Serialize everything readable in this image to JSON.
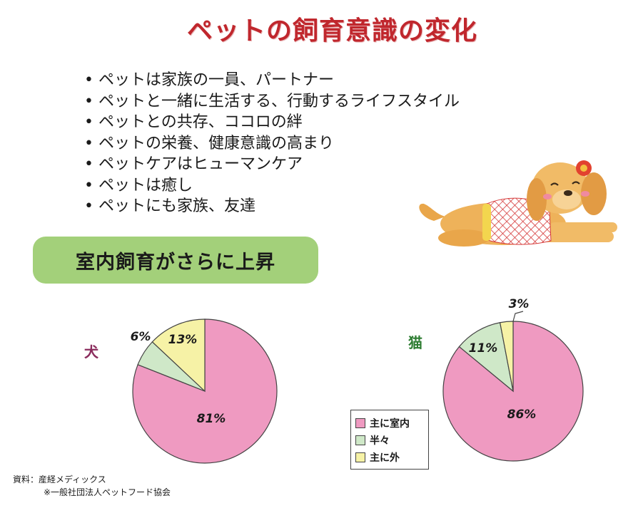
{
  "title": "ペットの飼育意識の変化",
  "bullets": [
    "ペットは家族の一員、パートナー",
    "ペットと一緒に生活する、行動するライフスタイル",
    "ペットとの共存、ココロの絆",
    "ペットの栄養、健康意識の高まり",
    "ペットケアはヒューマンケア",
    "ペットは癒し",
    "ペットにも家族、友達"
  ],
  "banner": "室内飼育がさらに上昇",
  "chart_data": [
    {
      "type": "pie",
      "title": "犬",
      "categories": [
        "主に室内",
        "半々",
        "主に外"
      ],
      "values": [
        81,
        6,
        13
      ],
      "labels": [
        "81%",
        "6%",
        "13%"
      ],
      "colors": [
        "#ef9ac1",
        "#cfe8c8",
        "#f6f2a6"
      ]
    },
    {
      "type": "pie",
      "title": "猫",
      "categories": [
        "主に室内",
        "半々",
        "主に外"
      ],
      "values": [
        86,
        11,
        3
      ],
      "labels": [
        "86%",
        "11%",
        "3%"
      ],
      "colors": [
        "#ef9ac1",
        "#cfe8c8",
        "#f6f2a6"
      ],
      "legend_position": "bottom-left"
    }
  ],
  "legend": [
    {
      "label": "主に室内",
      "color": "#ef9ac1"
    },
    {
      "label": "半々",
      "color": "#cfe8c8"
    },
    {
      "label": "主に外",
      "color": "#f6f2a6"
    }
  ],
  "source": {
    "line1": "資料：産経メディックス",
    "line2": "※一般社団法人ペットフード協会"
  },
  "colors": {
    "title": "#c0272d",
    "banner": "#a3d07a",
    "dog_label": "#8a2b5c",
    "cat_label": "#2e7d32"
  },
  "illustration": "dog-illustration"
}
